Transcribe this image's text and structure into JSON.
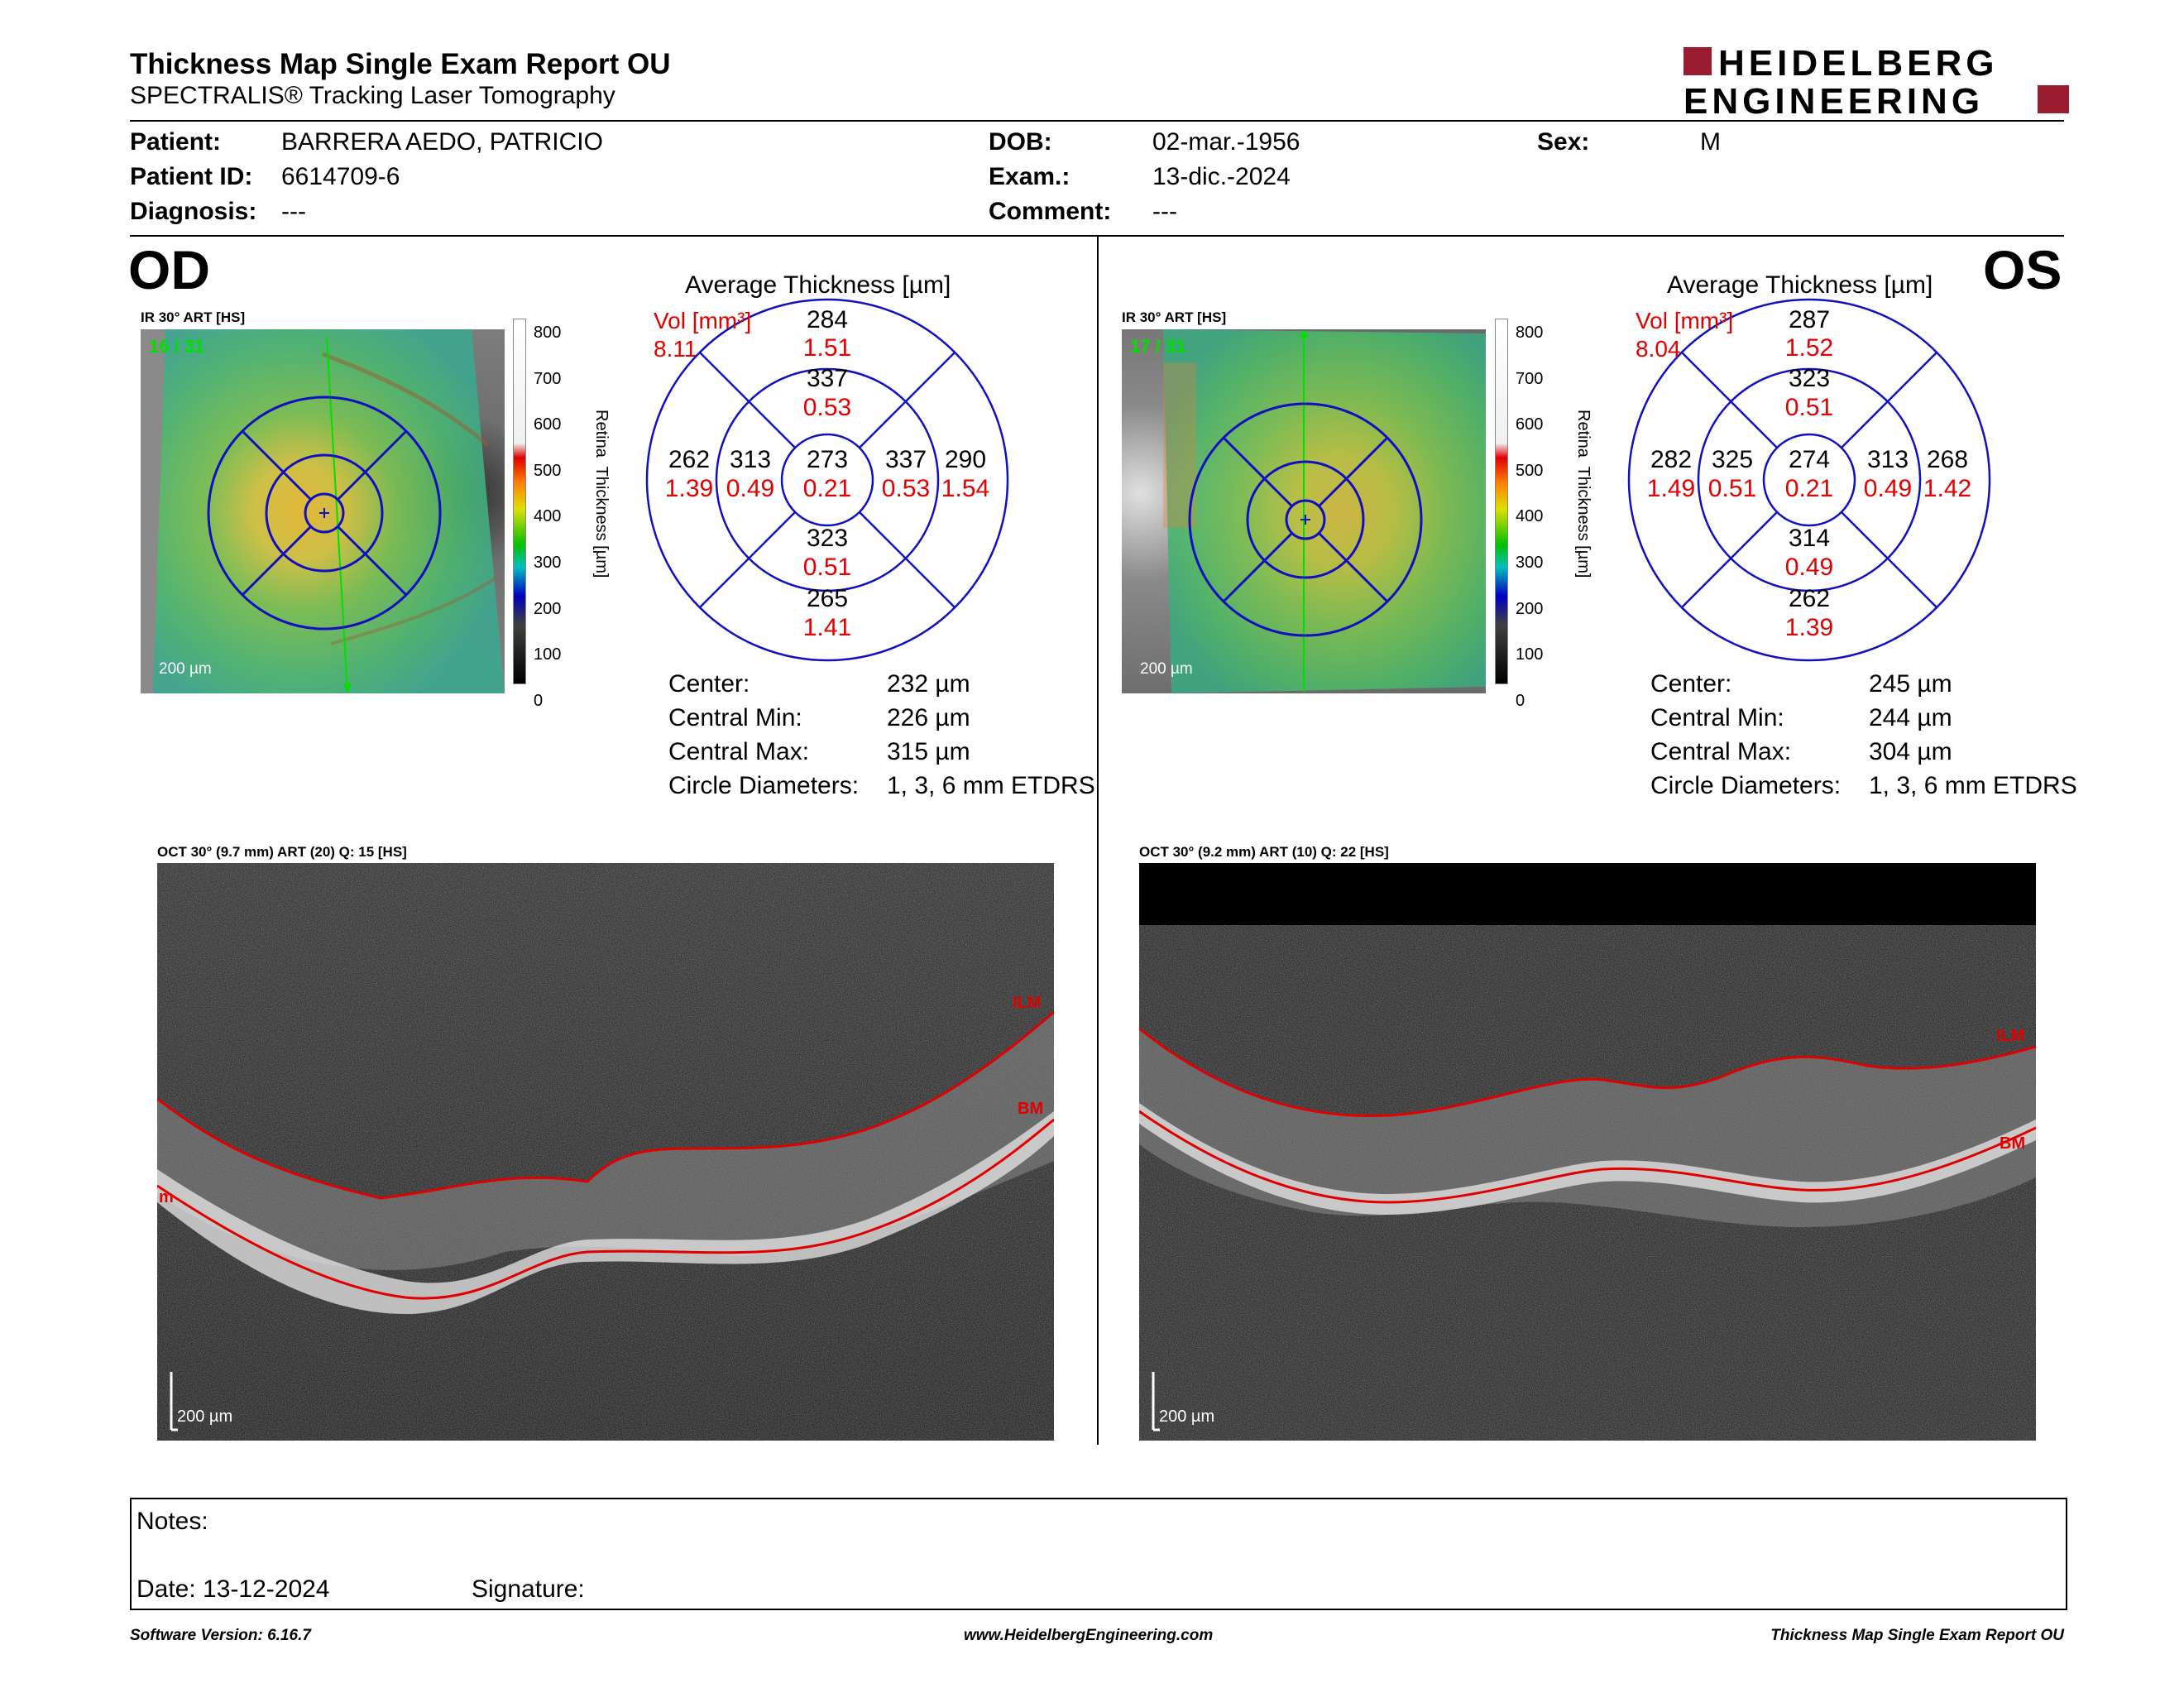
{
  "header": {
    "title": "Thickness Map Single Exam Report OU",
    "subtitle": "SPECTRALIS® Tracking Laser Tomography",
    "logo_line1": "HEIDELBERG",
    "logo_line2": "ENGINEERING",
    "logo_color": "#9b1b30"
  },
  "patient": {
    "patient_label": "Patient:",
    "patient_value": "BARRERA AEDO, PATRICIO",
    "id_label": "Patient ID:",
    "id_value": "6614709-6",
    "diagnosis_label": "Diagnosis:",
    "diagnosis_value": "---",
    "dob_label": "DOB:",
    "dob_value": "02-mar.-1956",
    "exam_label": "Exam.:",
    "exam_value": "13-dic.-2024",
    "comment_label": "Comment:",
    "comment_value": "---",
    "sex_label": "Sex:",
    "sex_value": "M"
  },
  "od": {
    "eye_label": "OD",
    "ir_label": "IR 30° ART [HS]",
    "frame_counter": "16 / 31",
    "scale_text": "200 µm",
    "avg_title": "Average Thickness [µm]",
    "vol_label": "Vol [mm³]",
    "vol_total": "8.11",
    "grid": {
      "center": {
        "t": "273",
        "v": "0.21"
      },
      "inner_sup": {
        "t": "337",
        "v": "0.53"
      },
      "inner_inf": {
        "t": "323",
        "v": "0.51"
      },
      "inner_temp": {
        "t": "313",
        "v": "0.49"
      },
      "inner_nas": {
        "t": "337",
        "v": "0.53"
      },
      "outer_sup": {
        "t": "284",
        "v": "1.51"
      },
      "outer_inf": {
        "t": "265",
        "v": "1.41"
      },
      "outer_temp": {
        "t": "262",
        "v": "1.39"
      },
      "outer_nas": {
        "t": "290",
        "v": "1.54"
      }
    },
    "stats": {
      "center_label": "Center:",
      "center_value": "232 µm",
      "min_label": "Central Min:",
      "min_value": "226 µm",
      "max_label": "Central Max:",
      "max_value": "315 µm",
      "diam_label": "Circle Diameters:",
      "diam_value": "1, 3, 6 mm ETDRS"
    },
    "oct_label": "OCT 30° (9.7 mm) ART (20) Q: 15 [HS]",
    "ilm": "ILM",
    "bm": "BM",
    "bm_left": "m",
    "oct_scale": "200 µm"
  },
  "os": {
    "eye_label": "OS",
    "ir_label": "IR 30° ART [HS]",
    "frame_counter": "17 / 31",
    "scale_text": "200 µm",
    "avg_title": "Average Thickness [µm]",
    "vol_label": "Vol [mm³]",
    "vol_total": "8.04",
    "grid": {
      "center": {
        "t": "274",
        "v": "0.21"
      },
      "inner_sup": {
        "t": "323",
        "v": "0.51"
      },
      "inner_inf": {
        "t": "314",
        "v": "0.49"
      },
      "inner_temp": {
        "t": "325",
        "v": "0.51"
      },
      "inner_nas": {
        "t": "313",
        "v": "0.49"
      },
      "outer_sup": {
        "t": "287",
        "v": "1.52"
      },
      "outer_inf": {
        "t": "262",
        "v": "1.39"
      },
      "outer_temp": {
        "t": "282",
        "v": "1.49"
      },
      "outer_nas": {
        "t": "268",
        "v": "1.42"
      }
    },
    "stats": {
      "center_label": "Center:",
      "center_value": "245 µm",
      "min_label": "Central Min:",
      "min_value": "244 µm",
      "max_label": "Central Max:",
      "max_value": "304 µm",
      "diam_label": "Circle Diameters:",
      "diam_value": "1, 3, 6 mm ETDRS"
    },
    "oct_label": "OCT 30° (9.2 mm) ART (10) Q: 22 [HS]",
    "ilm": "ILM",
    "bm": "BM",
    "oct_scale": "200 µm"
  },
  "colorbar": {
    "ticks": [
      "800",
      "700",
      "600",
      "500",
      "400",
      "300",
      "200",
      "100",
      "0"
    ],
    "axis_label": "Retina  Thickness [µm]"
  },
  "notes": {
    "notes_label": "Notes:",
    "date_label": "Date: 13-12-2024",
    "signature_label": "Signature:"
  },
  "footer": {
    "software": "Software Version: 6.16.7",
    "website": "www.HeidelbergEngineering.com",
    "report": "Thickness Map Single Exam Report OU"
  }
}
